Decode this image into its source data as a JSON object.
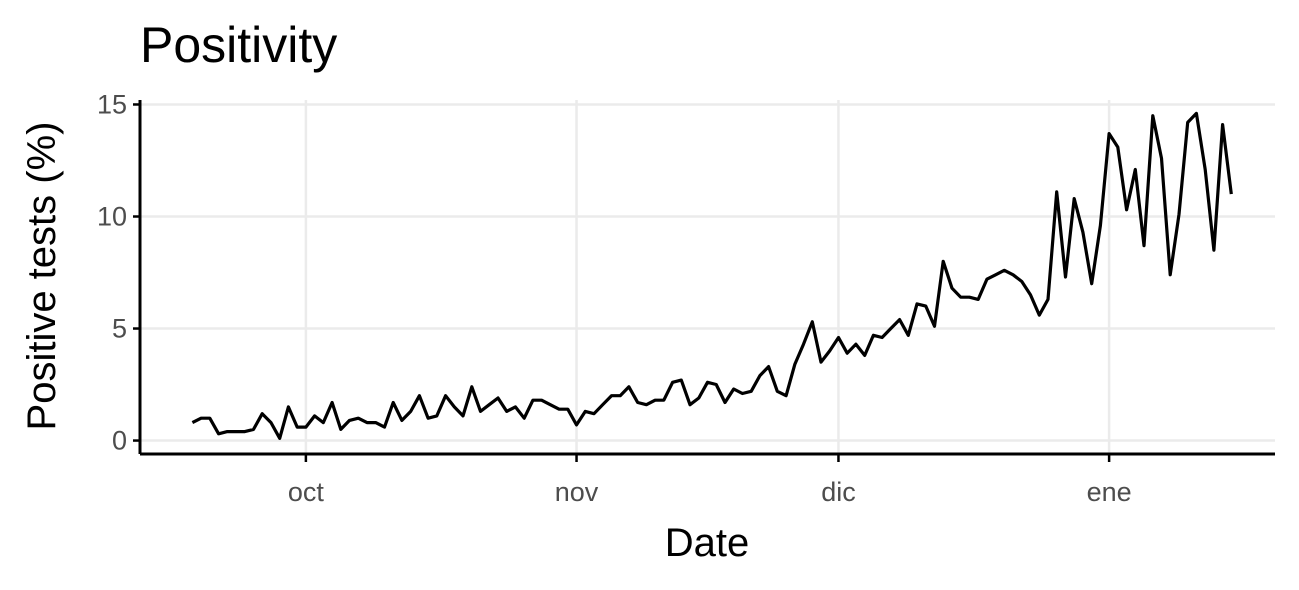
{
  "chart_data": {
    "type": "line",
    "title": "Positivity",
    "xlabel": "Date",
    "ylabel": "Positive tests (%)",
    "x_ticks": [
      {
        "date": "2020-10-01",
        "label": "oct"
      },
      {
        "date": "2020-11-01",
        "label": "nov"
      },
      {
        "date": "2020-12-01",
        "label": "dic"
      },
      {
        "date": "2021-01-01",
        "label": "ene"
      }
    ],
    "y_ticks": [
      {
        "value": 0,
        "label": "0"
      },
      {
        "value": 5,
        "label": "5"
      },
      {
        "value": 10,
        "label": "10"
      },
      {
        "value": 15,
        "label": "15"
      }
    ],
    "xlim": [
      "2020-09-12",
      "2021-01-20"
    ],
    "ylim": [
      -0.6,
      15.2
    ],
    "grid": true,
    "line_color": "#000000",
    "series": [
      {
        "x": [
          "2020-09-18",
          "2020-09-19",
          "2020-09-20",
          "2020-09-21",
          "2020-09-22",
          "2020-09-23",
          "2020-09-24",
          "2020-09-25",
          "2020-09-26",
          "2020-09-27",
          "2020-09-28",
          "2020-09-29",
          "2020-09-30",
          "2020-10-01",
          "2020-10-02",
          "2020-10-03",
          "2020-10-04",
          "2020-10-05",
          "2020-10-06",
          "2020-10-07",
          "2020-10-08",
          "2020-10-09",
          "2020-10-10",
          "2020-10-11",
          "2020-10-12",
          "2020-10-13",
          "2020-10-14",
          "2020-10-15",
          "2020-10-16",
          "2020-10-17",
          "2020-10-18",
          "2020-10-19",
          "2020-10-20",
          "2020-10-21",
          "2020-10-22",
          "2020-10-23",
          "2020-10-24",
          "2020-10-25",
          "2020-10-26",
          "2020-10-27",
          "2020-10-28",
          "2020-10-29",
          "2020-10-30",
          "2020-10-31",
          "2020-11-01",
          "2020-11-02",
          "2020-11-03",
          "2020-11-04",
          "2020-11-05",
          "2020-11-06",
          "2020-11-07",
          "2020-11-08",
          "2020-11-09",
          "2020-11-10",
          "2020-11-11",
          "2020-11-12",
          "2020-11-13",
          "2020-11-14",
          "2020-11-15",
          "2020-11-16",
          "2020-11-17",
          "2020-11-18",
          "2020-11-19",
          "2020-11-20",
          "2020-11-21",
          "2020-11-22",
          "2020-11-23",
          "2020-11-24",
          "2020-11-25",
          "2020-11-26",
          "2020-11-27",
          "2020-11-28",
          "2020-11-29",
          "2020-11-30",
          "2020-12-01",
          "2020-12-02",
          "2020-12-03",
          "2020-12-04",
          "2020-12-05",
          "2020-12-06",
          "2020-12-07",
          "2020-12-08",
          "2020-12-09",
          "2020-12-10",
          "2020-12-11",
          "2020-12-12",
          "2020-12-13",
          "2020-12-14",
          "2020-12-15",
          "2020-12-16",
          "2020-12-17",
          "2020-12-18",
          "2020-12-19",
          "2020-12-20",
          "2020-12-21",
          "2020-12-22",
          "2020-12-23",
          "2020-12-24",
          "2020-12-25",
          "2020-12-26",
          "2020-12-27",
          "2020-12-28",
          "2020-12-29",
          "2020-12-30",
          "2020-12-31",
          "2021-01-01",
          "2021-01-02",
          "2021-01-03",
          "2021-01-04",
          "2021-01-05",
          "2021-01-06",
          "2021-01-07",
          "2021-01-08",
          "2021-01-09",
          "2021-01-10",
          "2021-01-11",
          "2021-01-12",
          "2021-01-13",
          "2021-01-14",
          "2021-01-15"
        ],
        "y": [
          0.8,
          1.0,
          1.0,
          0.3,
          0.4,
          0.4,
          0.4,
          0.5,
          1.2,
          0.8,
          0.1,
          1.5,
          0.6,
          0.6,
          1.1,
          0.8,
          1.7,
          0.5,
          0.9,
          1.0,
          0.8,
          0.8,
          0.6,
          1.7,
          0.9,
          1.3,
          2.0,
          1.0,
          1.1,
          2.0,
          1.5,
          1.1,
          2.4,
          1.3,
          1.6,
          1.9,
          1.3,
          1.5,
          1.0,
          1.8,
          1.8,
          1.6,
          1.4,
          1.4,
          0.7,
          1.3,
          1.2,
          1.6,
          2.0,
          2.0,
          2.4,
          1.7,
          1.6,
          1.8,
          1.8,
          2.6,
          2.7,
          1.6,
          1.9,
          2.6,
          2.5,
          1.7,
          2.3,
          2.1,
          2.2,
          2.9,
          3.3,
          2.2,
          2.0,
          3.4,
          4.3,
          5.3,
          3.5,
          4.0,
          4.6,
          3.9,
          4.3,
          3.8,
          4.7,
          4.6,
          5.0,
          5.4,
          4.7,
          6.1,
          6.0,
          5.1,
          8.0,
          6.8,
          6.4,
          6.4,
          6.3,
          7.2,
          7.4,
          7.6,
          7.4,
          7.1,
          6.5,
          5.6,
          6.3,
          11.1,
          7.3,
          10.8,
          9.3,
          7.0,
          9.6,
          13.7,
          13.1,
          10.3,
          12.1,
          8.7,
          14.5,
          12.6,
          7.4,
          10.1,
          14.2,
          14.6,
          12.1,
          8.5,
          14.1,
          11.0
        ]
      }
    ]
  }
}
